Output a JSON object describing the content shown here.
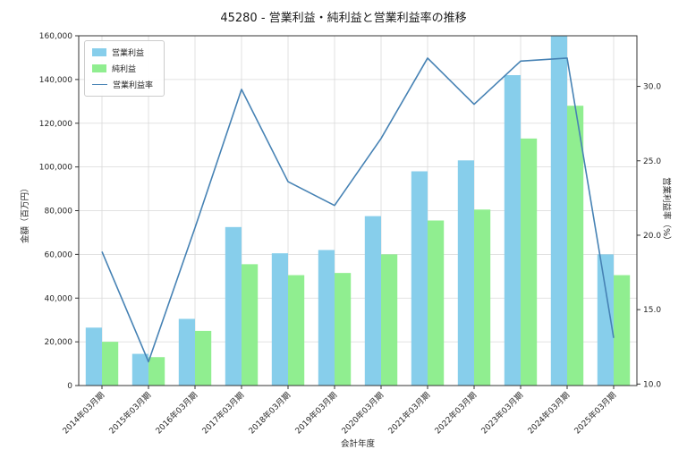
{
  "chart_data": {
    "type": "bar",
    "title": "45280 - 営業利益・純利益と営業利益率の推移",
    "xlabel": "会計年度",
    "ylabel_left": "金額（百万円）",
    "ylabel_right": "営業利益率（%）",
    "categories": [
      "2014年03月期",
      "2015年03月期",
      "2016年03月期",
      "2017年03月期",
      "2018年03月期",
      "2019年03月期",
      "2020年03月期",
      "2021年03月期",
      "2022年03月期",
      "2023年03月期",
      "2024年03月期",
      "2025年03月期"
    ],
    "series": [
      {
        "name": "営業利益",
        "type": "bar",
        "axis": "left",
        "color": "#87ceeb",
        "values": [
          26500,
          14500,
          30500,
          72500,
          60500,
          62000,
          77500,
          98000,
          103000,
          142000,
          160000,
          60000
        ]
      },
      {
        "name": "純利益",
        "type": "bar",
        "axis": "left",
        "color": "#90ee90",
        "values": [
          20000,
          13000,
          25000,
          55500,
          50500,
          51500,
          60000,
          75500,
          80500,
          113000,
          128000,
          50500
        ]
      },
      {
        "name": "営業利益率",
        "type": "line",
        "axis": "right",
        "color": "#4682b4",
        "values": [
          18.9,
          11.5,
          20.5,
          29.8,
          23.6,
          22.0,
          26.5,
          31.9,
          28.8,
          31.7,
          31.9,
          13.1
        ]
      }
    ],
    "ylim_left": [
      0,
      160000
    ],
    "yticks_left": {
      "values": [
        0,
        20000,
        40000,
        60000,
        80000,
        100000,
        120000,
        140000,
        160000
      ],
      "labels": [
        "0",
        "20,000",
        "40,000",
        "60,000",
        "80,000",
        "100,000",
        "120,000",
        "140,000",
        "160,000"
      ]
    },
    "ylim_right": [
      9.9,
      33.4
    ],
    "yticks_right": {
      "values": [
        10,
        15,
        20,
        25,
        30
      ],
      "labels": [
        "10.0",
        "15.0",
        "20.0",
        "25.0",
        "30.0"
      ]
    },
    "grid": true,
    "legend_position": "upper left",
    "grid_color": "#d9d9d9",
    "spine_color": "#333333",
    "text_color": "#262626"
  }
}
